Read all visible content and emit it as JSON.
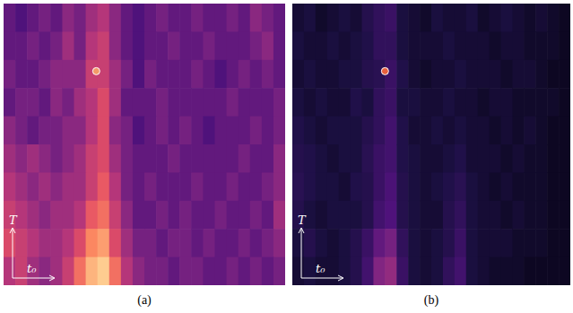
{
  "chart_data": [
    {
      "type": "heatmap",
      "title": "(a)",
      "x_label": "t₀",
      "y_label": "T",
      "tick_labels": false,
      "xlim": [
        0,
        24
      ],
      "ylim": [
        0,
        10
      ],
      "color_range": [
        0,
        1
      ],
      "cells": [
        [
          0.3,
          0.25,
          0.3,
          0.35,
          0.3,
          0.4,
          0.35,
          0.45,
          0.5,
          0.4,
          0.3,
          0.25,
          0.3,
          0.35,
          0.3,
          0.3,
          0.35,
          0.3,
          0.3,
          0.35,
          0.3,
          0.4,
          0.35,
          0.3
        ],
        [
          0.3,
          0.3,
          0.35,
          0.3,
          0.35,
          0.45,
          0.35,
          0.5,
          0.55,
          0.4,
          0.3,
          0.25,
          0.3,
          0.3,
          0.35,
          0.3,
          0.3,
          0.35,
          0.3,
          0.3,
          0.3,
          0.35,
          0.4,
          0.3
        ],
        [
          0.35,
          0.3,
          0.3,
          0.35,
          0.4,
          0.4,
          0.4,
          0.55,
          0.55,
          0.45,
          0.35,
          0.25,
          0.35,
          0.3,
          0.3,
          0.3,
          0.35,
          0.3,
          0.25,
          0.3,
          0.35,
          0.3,
          0.35,
          0.3
        ],
        [
          0.3,
          0.35,
          0.35,
          0.3,
          0.4,
          0.35,
          0.45,
          0.5,
          0.6,
          0.45,
          0.3,
          0.3,
          0.3,
          0.35,
          0.3,
          0.3,
          0.3,
          0.3,
          0.3,
          0.35,
          0.3,
          0.3,
          0.3,
          0.35
        ],
        [
          0.4,
          0.35,
          0.3,
          0.35,
          0.35,
          0.4,
          0.4,
          0.5,
          0.6,
          0.4,
          0.35,
          0.25,
          0.3,
          0.35,
          0.3,
          0.35,
          0.3,
          0.25,
          0.3,
          0.3,
          0.3,
          0.35,
          0.3,
          0.35
        ],
        [
          0.45,
          0.4,
          0.45,
          0.4,
          0.35,
          0.4,
          0.45,
          0.55,
          0.6,
          0.45,
          0.35,
          0.3,
          0.3,
          0.3,
          0.35,
          0.3,
          0.3,
          0.3,
          0.3,
          0.3,
          0.35,
          0.3,
          0.3,
          0.4
        ],
        [
          0.5,
          0.45,
          0.4,
          0.45,
          0.4,
          0.45,
          0.45,
          0.55,
          0.65,
          0.5,
          0.35,
          0.3,
          0.35,
          0.3,
          0.3,
          0.3,
          0.35,
          0.3,
          0.3,
          0.35,
          0.3,
          0.3,
          0.35,
          0.4
        ],
        [
          0.55,
          0.5,
          0.45,
          0.4,
          0.45,
          0.45,
          0.5,
          0.65,
          0.7,
          0.55,
          0.4,
          0.3,
          0.3,
          0.35,
          0.3,
          0.35,
          0.3,
          0.3,
          0.35,
          0.3,
          0.3,
          0.35,
          0.3,
          0.45
        ],
        [
          0.6,
          0.55,
          0.5,
          0.45,
          0.45,
          0.5,
          0.6,
          0.75,
          0.8,
          0.6,
          0.45,
          0.35,
          0.35,
          0.3,
          0.35,
          0.35,
          0.3,
          0.35,
          0.3,
          0.3,
          0.35,
          0.3,
          0.35,
          0.4
        ],
        [
          0.5,
          0.55,
          0.45,
          0.4,
          0.45,
          0.55,
          0.7,
          0.85,
          0.9,
          0.7,
          0.5,
          0.4,
          0.35,
          0.35,
          0.3,
          0.35,
          0.35,
          0.3,
          0.3,
          0.35,
          0.3,
          0.35,
          0.3,
          0.35
        ]
      ],
      "points": [
        {
          "x": 7.9,
          "y": 7.6,
          "color": "#f39a68"
        }
      ]
    },
    {
      "type": "heatmap",
      "title": "(b)",
      "x_label": "t₀",
      "y_label": "T",
      "tick_labels": false,
      "xlim": [
        0,
        24
      ],
      "ylim": [
        0,
        10
      ],
      "color_range": [
        0,
        1
      ],
      "cells": [
        [
          0.1,
          0.12,
          0.08,
          0.1,
          0.12,
          0.1,
          0.15,
          0.18,
          0.2,
          0.12,
          0.1,
          0.08,
          0.12,
          0.1,
          0.1,
          0.12,
          0.08,
          0.1,
          0.12,
          0.1,
          0.08,
          0.1,
          0.08,
          0.06
        ],
        [
          0.12,
          0.1,
          0.1,
          0.12,
          0.1,
          0.12,
          0.14,
          0.18,
          0.18,
          0.12,
          0.1,
          0.1,
          0.1,
          0.12,
          0.1,
          0.1,
          0.1,
          0.08,
          0.1,
          0.1,
          0.08,
          0.08,
          0.08,
          0.06
        ],
        [
          0.1,
          0.12,
          0.1,
          0.1,
          0.12,
          0.12,
          0.15,
          0.16,
          0.2,
          0.14,
          0.1,
          0.08,
          0.1,
          0.1,
          0.12,
          0.1,
          0.1,
          0.1,
          0.08,
          0.1,
          0.1,
          0.08,
          0.06,
          0.06
        ],
        [
          0.12,
          0.1,
          0.12,
          0.1,
          0.1,
          0.14,
          0.12,
          0.18,
          0.2,
          0.12,
          0.12,
          0.1,
          0.1,
          0.12,
          0.1,
          0.1,
          0.08,
          0.1,
          0.1,
          0.08,
          0.08,
          0.08,
          0.08,
          0.06
        ],
        [
          0.14,
          0.12,
          0.1,
          0.12,
          0.12,
          0.12,
          0.15,
          0.18,
          0.22,
          0.14,
          0.1,
          0.1,
          0.12,
          0.1,
          0.12,
          0.1,
          0.1,
          0.08,
          0.1,
          0.08,
          0.1,
          0.08,
          0.06,
          0.06
        ],
        [
          0.15,
          0.14,
          0.12,
          0.1,
          0.12,
          0.12,
          0.16,
          0.2,
          0.22,
          0.14,
          0.12,
          0.1,
          0.1,
          0.12,
          0.14,
          0.1,
          0.1,
          0.1,
          0.08,
          0.1,
          0.08,
          0.08,
          0.06,
          0.06
        ],
        [
          0.16,
          0.14,
          0.12,
          0.12,
          0.1,
          0.14,
          0.15,
          0.2,
          0.24,
          0.15,
          0.12,
          0.1,
          0.12,
          0.14,
          0.16,
          0.12,
          0.1,
          0.08,
          0.1,
          0.08,
          0.08,
          0.08,
          0.06,
          0.06
        ],
        [
          0.15,
          0.12,
          0.1,
          0.12,
          0.12,
          0.12,
          0.15,
          0.22,
          0.25,
          0.15,
          0.12,
          0.1,
          0.1,
          0.15,
          0.18,
          0.12,
          0.1,
          0.1,
          0.08,
          0.1,
          0.08,
          0.08,
          0.06,
          0.06
        ],
        [
          0.12,
          0.15,
          0.12,
          0.1,
          0.12,
          0.15,
          0.2,
          0.3,
          0.35,
          0.18,
          0.12,
          0.1,
          0.12,
          0.15,
          0.2,
          0.12,
          0.1,
          0.1,
          0.1,
          0.08,
          0.08,
          0.08,
          0.06,
          0.06
        ],
        [
          0.1,
          0.12,
          0.1,
          0.1,
          0.12,
          0.15,
          0.22,
          0.38,
          0.42,
          0.2,
          0.12,
          0.1,
          0.12,
          0.18,
          0.22,
          0.12,
          0.1,
          0.08,
          0.08,
          0.08,
          0.06,
          0.06,
          0.06,
          0.06
        ]
      ],
      "points": [
        {
          "x": 8.0,
          "y": 7.6,
          "color": "#e8603c"
        }
      ]
    }
  ]
}
